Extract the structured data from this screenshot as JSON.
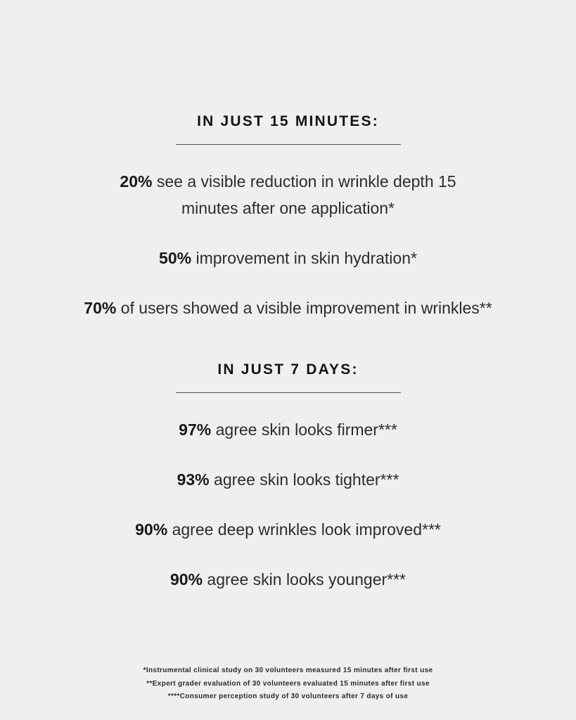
{
  "page": {
    "background_color": "#f0efed",
    "text_color": "#2c2c2e",
    "heading_color": "#141414"
  },
  "sections": [
    {
      "heading": "IN JUST 15 MINUTES:",
      "stats": [
        {
          "value": "20%",
          "text": " see a visible reduction in wrinkle depth 15\nminutes after one application*"
        },
        {
          "value": "50%",
          "text": " improvement in skin hydration*"
        },
        {
          "value": "70%",
          "text": " of users showed a visible improvement in wrinkles**"
        }
      ]
    },
    {
      "heading": "IN JUST 7 DAYS:",
      "stats": [
        {
          "value": "97%",
          "text": " agree skin looks firmer***"
        },
        {
          "value": "93%",
          "text": " agree skin looks tighter***"
        },
        {
          "value": "90%",
          "text": " agree deep wrinkles look improved***"
        },
        {
          "value": "90%",
          "text": " agree skin looks younger***"
        }
      ]
    }
  ],
  "footnotes": [
    "*Instrumental clinical study on 30 volunteers measured 15 minutes after first use",
    "**Expert grader evaluation of 30 volunteers evaluated 15 minutes after first use",
    "****Consumer perception study of 30 volunteers after 7 days of use"
  ]
}
